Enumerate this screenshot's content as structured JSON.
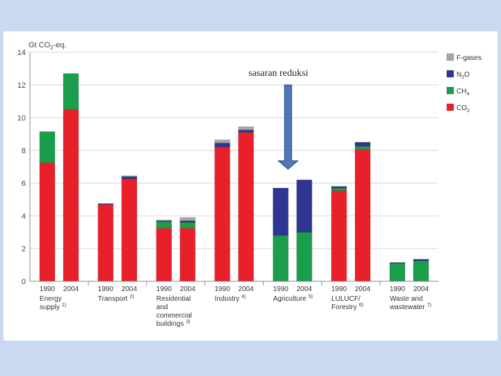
{
  "slide": {
    "annotation": "sasaran reduksi"
  },
  "chart_data": {
    "type": "stacked-bar",
    "ylabel": "Gt CO2-eq.",
    "ylim": [
      0,
      14
    ],
    "yticks": [
      0,
      2,
      4,
      6,
      8,
      10,
      12,
      14
    ],
    "grid": true,
    "legend_position": "top-right",
    "groups": [
      {
        "label": [
          "Energy",
          "supply"
        ],
        "note": "1)"
      },
      {
        "label": [
          "Transport"
        ],
        "note": "2)"
      },
      {
        "label": [
          "Residential",
          "and",
          "commercial",
          "buildings"
        ],
        "note": "3)"
      },
      {
        "label": [
          "Industry"
        ],
        "note": "4)"
      },
      {
        "label": [
          "Agriculture"
        ],
        "note": "5)"
      },
      {
        "label": [
          "LULUCF/",
          "Forestry"
        ],
        "note": "6)"
      },
      {
        "label": [
          "Waste and",
          "wastewater"
        ],
        "note": "7)"
      }
    ],
    "years": [
      "1990",
      "2004"
    ],
    "series": [
      {
        "name": "CO2",
        "color": "#e8202a",
        "values": [
          7.25,
          10.5,
          4.7,
          6.25,
          3.25,
          3.25,
          8.2,
          9.1,
          0,
          0,
          5.55,
          8.05,
          0,
          0
        ]
      },
      {
        "name": "CH4",
        "color": "#1a9e4c",
        "values": [
          1.9,
          2.2,
          0,
          0,
          0.4,
          0.35,
          0,
          0,
          2.8,
          3.0,
          0.15,
          0.2,
          1.1,
          1.25
        ]
      },
      {
        "name": "N2O",
        "color": "#2e3592",
        "values": [
          0,
          0,
          0.05,
          0.15,
          0.05,
          0.1,
          0.25,
          0.15,
          2.9,
          3.2,
          0.1,
          0.25,
          0.05,
          0.1
        ]
      },
      {
        "name": "F-gases",
        "color": "#a6a6a6",
        "values": [
          0,
          0,
          0,
          0.05,
          0.05,
          0.2,
          0.2,
          0.2,
          0,
          0,
          0,
          0,
          0,
          0
        ]
      }
    ],
    "legend": [
      {
        "label": "F-gases",
        "color": "#a6a6a6"
      },
      {
        "label": "N2O",
        "color": "#2e3592"
      },
      {
        "label": "CH4",
        "color": "#1a9e4c"
      },
      {
        "label": "CO2",
        "color": "#e8202a"
      }
    ]
  }
}
